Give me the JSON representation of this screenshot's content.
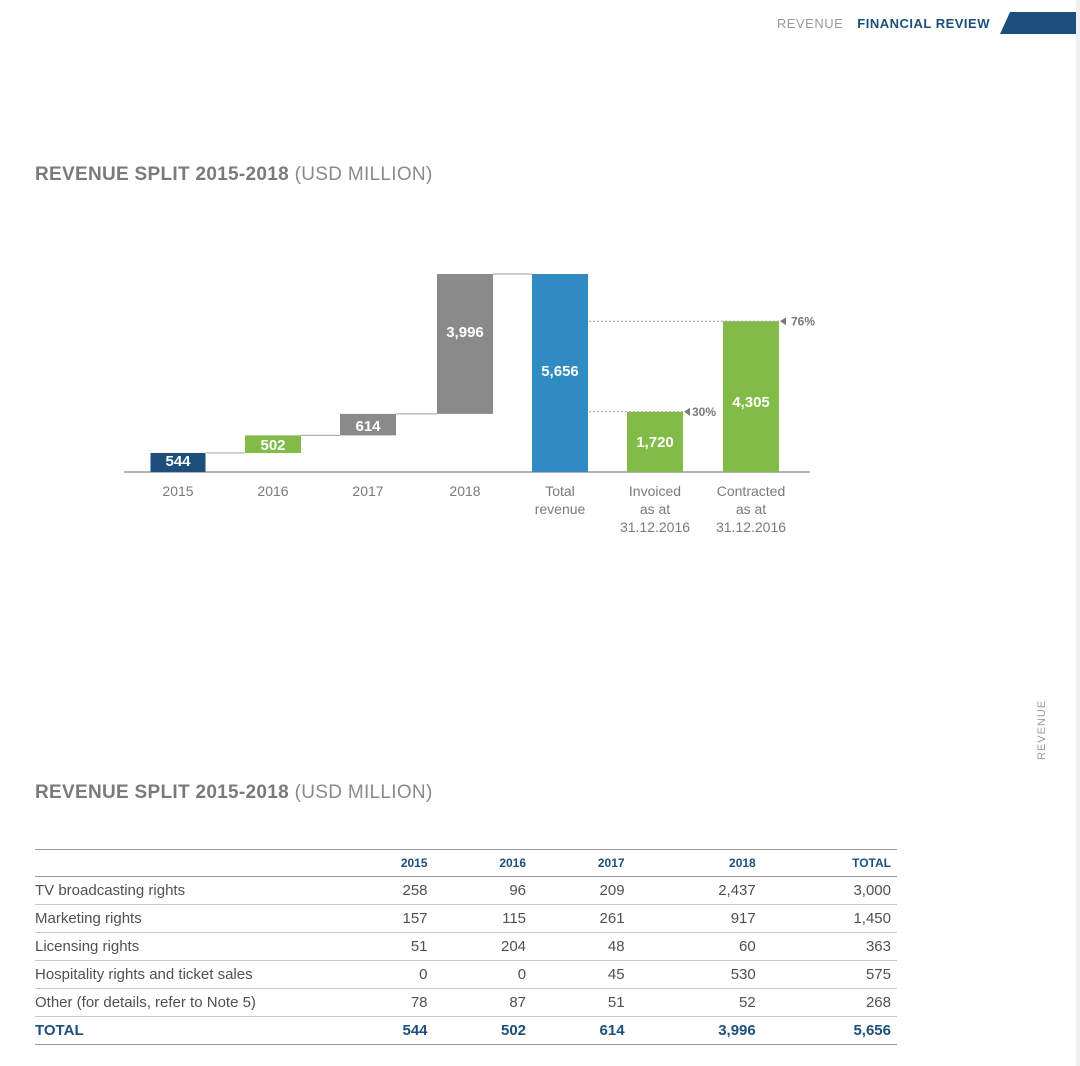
{
  "header": {
    "section": "REVENUE",
    "page": "FINANCIAL REVIEW"
  },
  "side_label": "REVENUE",
  "chart_title": {
    "main": "REVENUE SPLIT 2015-2018",
    "unit": "(USD MILLION)"
  },
  "table_title": {
    "main": "REVENUE SPLIT 2015-2018",
    "unit": "(USD MILLION)"
  },
  "colors": {
    "navy": "#1d4f7c",
    "green": "#83bb48",
    "grey": "#8a8a8a",
    "blue": "#2f8bc1"
  },
  "chart_data": {
    "type": "bar",
    "subtype": "waterfall",
    "categories": [
      "2015",
      "2016",
      "2017",
      "2018",
      "Total revenue",
      "Invoiced as at 31.12.2016",
      "Contracted as at 31.12.2016"
    ],
    "category_lines": [
      [
        "2015"
      ],
      [
        "2016"
      ],
      [
        "2017"
      ],
      [
        "2018"
      ],
      [
        "Total",
        "revenue"
      ],
      [
        "Invoiced",
        "as at",
        "31.12.2016"
      ],
      [
        "Contracted",
        "as at",
        "31.12.2016"
      ]
    ],
    "bars": [
      {
        "category": "2015",
        "base": 0,
        "value": 544,
        "label": "544",
        "color": "#1d4f7c"
      },
      {
        "category": "2016",
        "base": 544,
        "value": 502,
        "label": "502",
        "color": "#83bb48"
      },
      {
        "category": "2017",
        "base": 1046,
        "value": 614,
        "label": "614",
        "color": "#8a8a8a"
      },
      {
        "category": "2018",
        "base": 1660,
        "value": 3996,
        "label": "3,996",
        "color": "#8a8a8a"
      },
      {
        "category": "Total revenue",
        "base": 0,
        "value": 5656,
        "label": "5,656",
        "color": "#2f8bc1"
      },
      {
        "category": "Invoiced as at 31.12.2016",
        "base": 0,
        "value": 1720,
        "label": "1,720",
        "color": "#83bb48"
      },
      {
        "category": "Contracted as at 31.12.2016",
        "base": 0,
        "value": 4305,
        "label": "4,305",
        "color": "#83bb48"
      }
    ],
    "annotations": [
      {
        "text": "30%",
        "target": "Invoiced as at 31.12.2016"
      },
      {
        "text": "76%",
        "target": "Contracted as at 31.12.2016"
      }
    ],
    "ylim": [
      0,
      5656
    ],
    "grid": false,
    "legend": "none",
    "title": "REVENUE SPLIT 2015-2018 (USD MILLION)"
  },
  "table": {
    "columns": [
      "",
      "2015",
      "2016",
      "2017",
      "2018",
      "TOTAL"
    ],
    "rows": [
      [
        "TV broadcasting rights",
        "258",
        "96",
        "209",
        "2,437",
        "3,000"
      ],
      [
        "Marketing rights",
        "157",
        "115",
        "261",
        "917",
        "1,450"
      ],
      [
        "Licensing rights",
        "51",
        "204",
        "48",
        "60",
        "363"
      ],
      [
        "Hospitality rights and ticket sales",
        "0",
        "0",
        "45",
        "530",
        "575"
      ],
      [
        "Other (for details, refer to Note 5)",
        "78",
        "87",
        "51",
        "52",
        "268"
      ]
    ],
    "total": [
      "TOTAL",
      "544",
      "502",
      "614",
      "3,996",
      "5,656"
    ]
  }
}
